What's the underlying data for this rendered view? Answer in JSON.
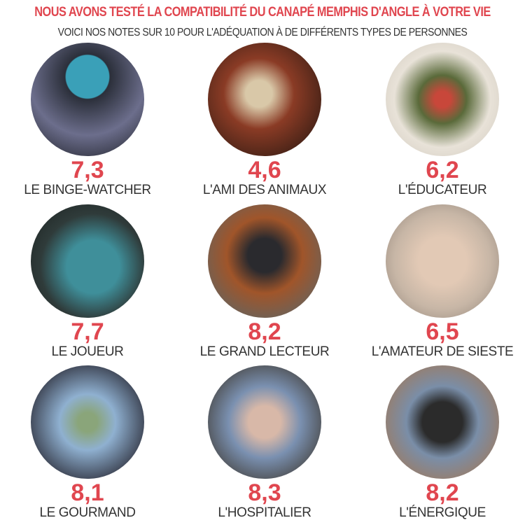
{
  "header": {
    "title": "NOUS AVONS TESTÉ LA COMPATIBILITÉ DU CANAPÉ MEMPHIS D'ANGLE À VOTRE VIE",
    "subtitle": "VOICI NOS NOTES SUR 10 POUR L'ADÉQUATION À DE DIFFÉRENTS TYPES DE PERSONNES"
  },
  "colors": {
    "accent": "#e0464f",
    "text": "#333333"
  },
  "items": [
    {
      "score": "7,3",
      "label": "LE BINGE-WATCHER",
      "photo": "couple-watching-tv"
    },
    {
      "score": "4,6",
      "label": "L'AMI DES ANIMAUX",
      "photo": "woman-with-dogs"
    },
    {
      "score": "6,2",
      "label": "L'ÉDUCATEUR",
      "photo": "kids-jumping-on-sofa"
    },
    {
      "score": "7,7",
      "label": "LE JOUEUR",
      "photo": "gamer-with-headset"
    },
    {
      "score": "8,2",
      "label": "LE GRAND LECTEUR",
      "photo": "man-reading-book"
    },
    {
      "score": "6,5",
      "label": "L'AMATEUR DE SIESTE",
      "photo": "woman-napping"
    },
    {
      "score": "8,1",
      "label": "LE GOURMAND",
      "photo": "man-eating-bowl"
    },
    {
      "score": "8,3",
      "label": "L'HOSPITALIER",
      "photo": "friends-on-sofa"
    },
    {
      "score": "8,2",
      "label": "L'ÉNERGIQUE",
      "photo": "man-sitting-energetic"
    }
  ]
}
